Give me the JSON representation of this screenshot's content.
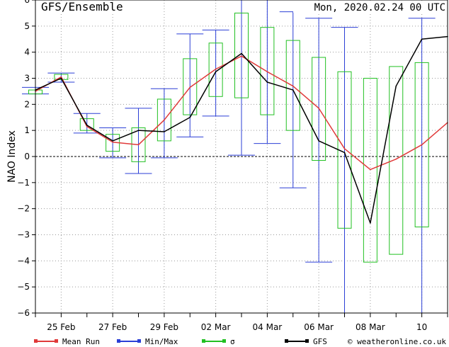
{
  "chart_data": {
    "type": "line",
    "title": "GFS/Ensemble",
    "run_label": "Mon, 2020.02.24   00 UTC",
    "ylabel": "NAO Index",
    "ylim": [
      -6,
      6
    ],
    "yticks": [
      -6,
      -5,
      -4,
      -3,
      -2,
      -1,
      0,
      1,
      2,
      3,
      4,
      5,
      6
    ],
    "x_step_days": 0.5,
    "x_range": [
      0,
      16
    ],
    "xtick_labels": [
      "25 Feb",
      "27 Feb",
      "29 Feb",
      "02 Mar",
      "04 Mar",
      "06 Mar",
      "08 Mar",
      "10"
    ],
    "xtick_positions": [
      1,
      3,
      5,
      7,
      9,
      11,
      13,
      15
    ],
    "colors": {
      "mean": "#e03a3a",
      "minmax": "#2b3fd6",
      "sigma": "#22c022",
      "gfs": "#000000"
    },
    "series": [
      {
        "name": "Mean Run",
        "x": [
          0,
          1,
          2,
          3,
          4,
          5,
          6,
          7,
          8,
          9,
          10,
          11,
          12,
          13,
          14,
          15,
          16
        ],
        "values": [
          2.5,
          3.05,
          1.15,
          0.55,
          0.45,
          1.4,
          2.65,
          3.35,
          3.85,
          3.25,
          2.7,
          1.85,
          0.3,
          -0.5,
          -0.1,
          0.45,
          1.3
        ]
      },
      {
        "name": "GFS",
        "x": [
          0,
          1,
          2,
          3,
          4,
          5,
          6,
          7,
          8,
          9,
          10,
          11,
          12,
          13,
          14,
          15,
          16
        ],
        "values": [
          2.55,
          3.0,
          1.2,
          0.6,
          1.0,
          0.95,
          1.5,
          3.25,
          3.95,
          2.85,
          2.55,
          0.6,
          0.15,
          -2.55,
          2.7,
          4.5,
          4.6
        ]
      }
    ],
    "minmax_name": "Min/Max",
    "minmax": [
      {
        "x": 0,
        "min": 2.4,
        "max": 2.65
      },
      {
        "x": 1,
        "min": 2.85,
        "max": 3.2
      },
      {
        "x": 2,
        "min": 0.9,
        "max": 1.65
      },
      {
        "x": 3,
        "min": -0.05,
        "max": 1.1
      },
      {
        "x": 4,
        "min": -0.65,
        "max": 1.85
      },
      {
        "x": 5,
        "min": -0.05,
        "max": 2.6
      },
      {
        "x": 6,
        "min": 0.75,
        "max": 4.7
      },
      {
        "x": 7,
        "min": 1.55,
        "max": 4.85
      },
      {
        "x": 8,
        "min": 0.05,
        "max": 6.0
      },
      {
        "x": 9,
        "min": 0.5,
        "max": 6.0
      },
      {
        "x": 10,
        "min": -1.2,
        "max": 5.55
      },
      {
        "x": 11,
        "min": -4.05,
        "max": 5.3
      },
      {
        "x": 12,
        "min": -6.0,
        "max": 4.95
      },
      {
        "x": 15,
        "min": -6.0,
        "max": 5.3
      }
    ],
    "sigma_name": "σ",
    "sigma": [
      {
        "x": 0,
        "low": 2.4,
        "high": 2.55
      },
      {
        "x": 1,
        "low": 2.95,
        "high": 3.15
      },
      {
        "x": 2,
        "low": 1.0,
        "high": 1.45
      },
      {
        "x": 3,
        "low": 0.2,
        "high": 0.85
      },
      {
        "x": 4,
        "low": -0.2,
        "high": 1.1
      },
      {
        "x": 5,
        "low": 0.6,
        "high": 2.2
      },
      {
        "x": 6,
        "low": 1.6,
        "high": 3.75
      },
      {
        "x": 7,
        "low": 2.3,
        "high": 4.35
      },
      {
        "x": 8,
        "low": 2.25,
        "high": 5.5
      },
      {
        "x": 9,
        "low": 1.6,
        "high": 4.95
      },
      {
        "x": 10,
        "low": 1.0,
        "high": 4.45
      },
      {
        "x": 11,
        "low": -0.15,
        "high": 3.8
      },
      {
        "x": 12,
        "low": -2.75,
        "high": 3.25
      },
      {
        "x": 13,
        "low": -4.05,
        "high": 3.0
      },
      {
        "x": 14,
        "low": -3.75,
        "high": 3.45
      },
      {
        "x": 15,
        "low": -2.7,
        "high": 3.6
      }
    ],
    "zero_line": "dashed",
    "grid": "dotted"
  },
  "legend": {
    "items": [
      {
        "label": "Mean Run",
        "color": "#e03a3a"
      },
      {
        "label": "Min/Max",
        "color": "#2b3fd6"
      },
      {
        "label": "σ",
        "color": "#22c022"
      },
      {
        "label": "GFS",
        "color": "#000000"
      }
    ]
  },
  "credit": "© weatheronline.co.uk"
}
